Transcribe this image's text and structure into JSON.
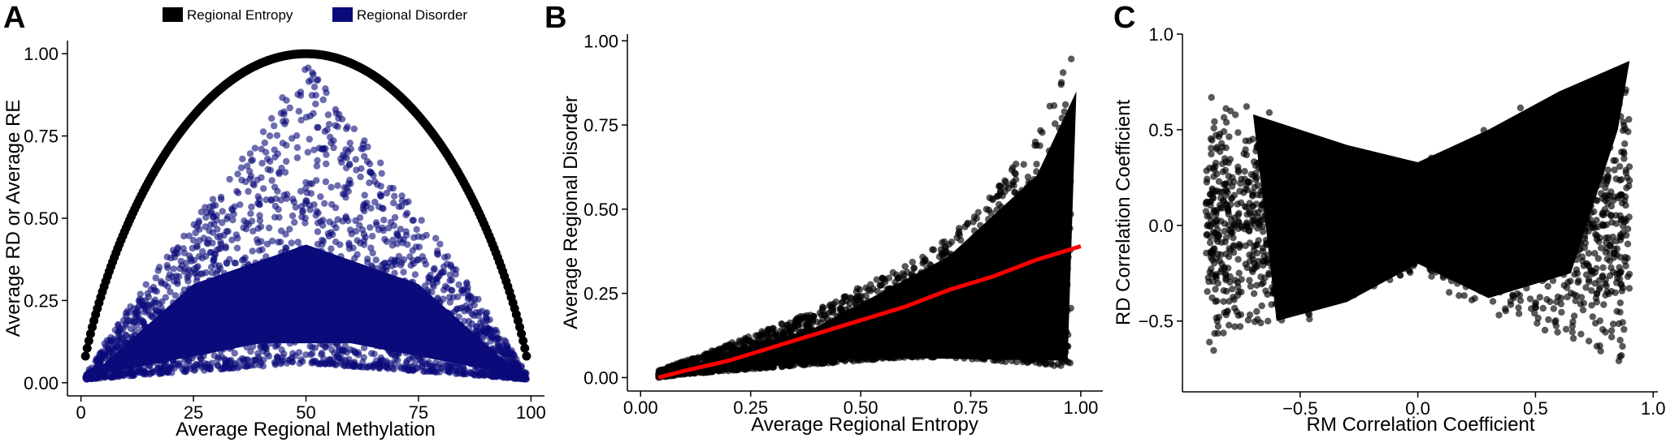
{
  "legend": {
    "items": [
      {
        "label": "Regional Entropy",
        "color": "#000000"
      },
      {
        "label": "Regional Disorder",
        "color": "#0a0a7a"
      }
    ]
  },
  "chart_data": [
    {
      "panel": "A",
      "type": "scatter",
      "xlabel": "Average Regional Methylation",
      "ylabel": "Average RD or Average RE",
      "xlim": [
        -3,
        103
      ],
      "ylim": [
        -0.04,
        1.04
      ],
      "xticks": [
        0,
        25,
        50,
        75,
        100
      ],
      "yticks": [
        0.0,
        0.25,
        0.5,
        0.75,
        1.0
      ],
      "xtick_labels": [
        "0",
        "25",
        "50",
        "75",
        "100"
      ],
      "ytick_labels": [
        "0.00",
        "0.25",
        "0.50",
        "0.75",
        "1.00"
      ],
      "grid": false,
      "legend_position": "top",
      "series": [
        {
          "name": "Regional Entropy",
          "color": "#000000",
          "shape": "binary-entropy curve",
          "x": [
            1,
            5,
            10,
            15,
            20,
            25,
            30,
            35,
            40,
            45,
            50,
            55,
            60,
            65,
            70,
            75,
            80,
            85,
            90,
            95,
            99
          ],
          "y": [
            0.08,
            0.29,
            0.47,
            0.61,
            0.72,
            0.81,
            0.88,
            0.93,
            0.97,
            0.99,
            1.0,
            0.99,
            0.97,
            0.93,
            0.88,
            0.81,
            0.72,
            0.61,
            0.47,
            0.29,
            0.08
          ]
        },
        {
          "name": "Regional Disorder",
          "color": "#0a0a7a",
          "shape": "triangular cloud",
          "x": [
            1,
            10,
            20,
            30,
            40,
            50,
            60,
            70,
            80,
            90,
            99
          ],
          "y_low": [
            0.01,
            0.02,
            0.03,
            0.04,
            0.05,
            0.06,
            0.05,
            0.04,
            0.03,
            0.02,
            0.01
          ],
          "y_high": [
            0.03,
            0.22,
            0.4,
            0.58,
            0.78,
            0.97,
            0.8,
            0.6,
            0.42,
            0.22,
            0.03
          ]
        }
      ]
    },
    {
      "panel": "B",
      "type": "scatter",
      "xlabel": "Average Regional Entropy",
      "ylabel": "Average Regional Disorder",
      "xlim": [
        -0.03,
        1.05
      ],
      "ylim": [
        -0.04,
        1.02
      ],
      "xticks": [
        0.0,
        0.25,
        0.5,
        0.75,
        1.0
      ],
      "yticks": [
        0.0,
        0.25,
        0.5,
        0.75,
        1.0
      ],
      "xtick_labels": [
        "0.00",
        "0.25",
        "0.50",
        "0.75",
        "1.00"
      ],
      "ytick_labels": [
        "0.00",
        "0.25",
        "0.50",
        "0.75",
        "1.00"
      ],
      "grid": false,
      "series": [
        {
          "color": "#000000",
          "shape": "points",
          "x": [
            0.04,
            0.1,
            0.2,
            0.3,
            0.4,
            0.5,
            0.6,
            0.7,
            0.8,
            0.9,
            0.98
          ],
          "y_low": [
            0.0,
            0.01,
            0.02,
            0.03,
            0.04,
            0.05,
            0.06,
            0.06,
            0.05,
            0.04,
            0.03
          ],
          "y_high": [
            0.02,
            0.05,
            0.1,
            0.15,
            0.2,
            0.27,
            0.33,
            0.42,
            0.55,
            0.72,
            0.97
          ]
        },
        {
          "color": "#ff0000",
          "shape": "fit line",
          "x": [
            0.04,
            0.1,
            0.2,
            0.3,
            0.4,
            0.5,
            0.6,
            0.7,
            0.8,
            0.9,
            1.0
          ],
          "y": [
            0.0,
            0.02,
            0.05,
            0.09,
            0.13,
            0.17,
            0.21,
            0.26,
            0.3,
            0.35,
            0.39
          ]
        }
      ]
    },
    {
      "panel": "C",
      "type": "scatter",
      "xlabel": "RM Correlation Coefficient",
      "ylabel": "RD Correlation Coefficient",
      "xlim": [
        -1.0,
        1.02
      ],
      "ylim": [
        -0.87,
        1.0
      ],
      "xticks": [
        -0.5,
        0.0,
        0.5,
        1.0
      ],
      "yticks": [
        -0.5,
        0.0,
        0.5,
        1.0
      ],
      "xtick_labels": [
        "−0.5",
        "0.0",
        "0.5",
        "1.0"
      ],
      "ytick_labels": [
        "−0.5",
        "0.0",
        "0.5",
        "1.0"
      ],
      "grid": false,
      "series": [
        {
          "color": "#000000",
          "shape": "butterfly cloud",
          "x": [
            -0.9,
            -0.7,
            -0.5,
            -0.3,
            -0.1,
            0.0,
            0.1,
            0.3,
            0.5,
            0.7,
            0.9
          ],
          "y_low": [
            -0.7,
            -0.6,
            -0.5,
            -0.4,
            -0.3,
            -0.25,
            -0.3,
            -0.4,
            -0.5,
            -0.6,
            -0.7
          ],
          "y_high": [
            0.7,
            0.65,
            0.55,
            0.45,
            0.38,
            0.35,
            0.45,
            0.6,
            0.75,
            0.85,
            0.9
          ]
        }
      ]
    }
  ]
}
